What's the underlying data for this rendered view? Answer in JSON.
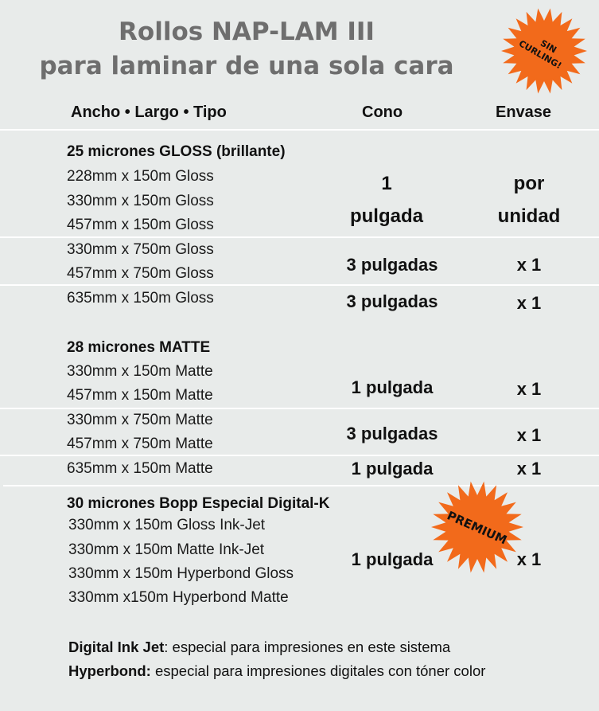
{
  "title": {
    "line1": "Rollos NAP-LAM III",
    "line2": "para laminar de una sola cara"
  },
  "badges": {
    "top": {
      "line1": "SIN",
      "line2": "CURLING!"
    },
    "premium": "PREMIUM",
    "color": "#f26a1b"
  },
  "headers": {
    "col1": "Ancho • Largo • Tipo",
    "col2": "Cono",
    "col3": "Envase"
  },
  "group1": {
    "title": "25 micrones GLOSS (brillante)",
    "rows": [
      "228mm x 150m Gloss",
      "330mm x 150m Gloss",
      "457mm x 150m Gloss",
      "330mm x 750m Gloss",
      "457mm x 750m Gloss",
      "635mm x 150m Gloss"
    ],
    "cono_a_line1": "1",
    "cono_a_line2": "pulgada",
    "envase_a_line1": "por",
    "envase_a_line2": "unidad",
    "cono_b": "3 pulgadas",
    "envase_b": "x 1",
    "cono_c": "3 pulgadas",
    "envase_c": "x 1"
  },
  "group2": {
    "title": "28 micrones MATTE",
    "rows": [
      "330mm x 150m Matte",
      "457mm x 150m Matte",
      "330mm x 750m Matte",
      "457mm x 750m Matte",
      "635mm x 150m Matte"
    ],
    "cono_a": "1 pulgada",
    "envase_a": "x 1",
    "cono_b": "3 pulgadas",
    "envase_b": "x 1",
    "cono_c": "1 pulgada",
    "envase_c": "x 1"
  },
  "group3": {
    "title": "30 micrones Bopp Especial Digital-K",
    "rows": [
      "330mm x 150m Gloss Ink-Jet",
      "330mm x 150m Matte Ink-Jet",
      "330mm x 150m Hyperbond Gloss",
      "330mm x150m Hyperbond Matte"
    ],
    "cono": "1 pulgada",
    "envase": "x 1"
  },
  "footnotes": {
    "ink_label": "Digital Ink Jet",
    "ink_text": ": especial para impresiones en este sistema",
    "hyper_label": "Hyperbond:",
    "hyper_text": " especial para impresiones digitales con tóner color"
  }
}
